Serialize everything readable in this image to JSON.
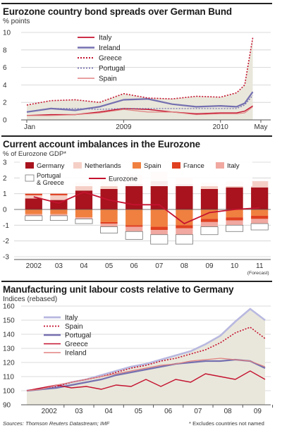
{
  "colors": {
    "red": "#c4122f",
    "dark_red": "#a8131d",
    "pink": "#f2c0c0",
    "light_pink": "#f5cfc6",
    "orange": "#f08040",
    "orange_red": "#e04020",
    "salmon": "#f0a8a0",
    "blue": "#7570b0",
    "light_blue": "#b8b8e0",
    "beige": "#e9e7db",
    "light_red": "#e08080"
  },
  "panel1": {
    "title": "Eurozone country bond spreads over German Bund",
    "unit": "% points",
    "legend": [
      "Italy",
      "Ireland",
      "Greece",
      "Portugal",
      "Spain"
    ],
    "x_ticks": [
      "Jan",
      "2009",
      "2010",
      "May"
    ],
    "y_ticks": [
      "0",
      "2",
      "4",
      "6",
      "8",
      "10"
    ]
  },
  "panel2": {
    "title": "Current account imbalances in the Eurozone",
    "unit": "% of Eurozone GDP*",
    "legend": [
      "Germany",
      "Netherlands",
      "Spain",
      "France",
      "Italy",
      "Portugal & Greece",
      "Eurozone"
    ],
    "x_ticks": [
      "2002",
      "03",
      "04",
      "05",
      "06",
      "07",
      "08",
      "09",
      "10",
      "11"
    ],
    "forecast_note": "(Forecast)",
    "y_ticks": [
      "3",
      "2",
      "1",
      "0",
      "-1",
      "-2",
      "-3"
    ]
  },
  "panel3": {
    "title": "Manufacturing unit labour costs relative to Germany",
    "unit": "Indices (rebased)",
    "legend": [
      "Italy",
      "Spain",
      "Portugal",
      "Greece",
      "Ireland"
    ],
    "x_ticks": [
      "2002",
      "03",
      "04",
      "05",
      "06",
      "07",
      "08",
      "09"
    ],
    "y_ticks": [
      "90",
      "100",
      "110",
      "120",
      "130",
      "140",
      "150",
      "160"
    ]
  },
  "footer": {
    "source": "Sources: Thomson Reuters Datastream; IMF",
    "note": "* Excludes countries not named"
  },
  "chart_data": [
    {
      "type": "line",
      "title": "Eurozone country bond spreads over German Bund",
      "ylabel": "% points",
      "ylim": [
        0,
        10
      ],
      "x_label_positions": [
        "Jan 2008",
        "2009",
        "2010",
        "May 2010"
      ],
      "x": [
        "2008-01",
        "2008-04",
        "2008-07",
        "2008-10",
        "2009-01",
        "2009-04",
        "2009-07",
        "2009-10",
        "2010-01",
        "2010-03",
        "2010-04",
        "2010-05"
      ],
      "series": [
        {
          "name": "Italy",
          "values": [
            0.5,
            0.6,
            0.6,
            0.9,
            1.3,
            1.2,
            0.9,
            0.7,
            0.8,
            0.8,
            1.0,
            1.6
          ]
        },
        {
          "name": "Ireland",
          "values": [
            0.9,
            1.3,
            1.1,
            1.5,
            2.3,
            2.4,
            1.8,
            1.5,
            1.6,
            1.5,
            1.9,
            3.2
          ]
        },
        {
          "name": "Greece",
          "values": [
            1.7,
            2.2,
            2.3,
            2.0,
            3.0,
            2.5,
            2.4,
            2.7,
            2.6,
            3.1,
            4.0,
            9.4
          ]
        },
        {
          "name": "Portugal",
          "values": [
            0.9,
            1.3,
            1.3,
            1.2,
            1.3,
            1.3,
            1.3,
            1.3,
            1.3,
            1.3,
            1.7,
            2.8
          ]
        },
        {
          "name": "Spain",
          "values": [
            0.5,
            0.5,
            0.6,
            0.8,
            1.2,
            0.9,
            0.9,
            0.6,
            0.7,
            0.7,
            0.8,
            1.5
          ]
        }
      ],
      "legend_position": "top-left",
      "grid": true
    },
    {
      "type": "bar",
      "stacked": true,
      "title": "Current account imbalances in the Eurozone",
      "ylabel": "% of Eurozone GDP*",
      "ylim": [
        -3,
        3
      ],
      "categories": [
        "2002",
        "03",
        "04",
        "05",
        "06",
        "07",
        "08",
        "09",
        "10",
        "11"
      ],
      "series": [
        {
          "name": "Germany",
          "values": [
            0.7,
            0.6,
            1.2,
            1.3,
            1.6,
            1.8,
            1.6,
            1.3,
            1.4,
            1.4
          ]
        },
        {
          "name": "Netherlands",
          "values": [
            0.2,
            0.3,
            0.5,
            0.6,
            0.6,
            0.6,
            0.4,
            0.4,
            0.4,
            0.4
          ]
        },
        {
          "name": "Spain",
          "values": [
            -0.3,
            -0.3,
            -0.5,
            -0.8,
            -1.0,
            -1.1,
            -1.0,
            -0.6,
            -0.5,
            -0.4
          ]
        },
        {
          "name": "France",
          "values": [
            0.1,
            0.1,
            0.0,
            -0.1,
            -0.1,
            -0.2,
            -0.2,
            -0.2,
            -0.2,
            -0.2
          ]
        },
        {
          "name": "Italy",
          "values": [
            -0.1,
            -0.1,
            -0.1,
            -0.2,
            -0.3,
            -0.3,
            -0.4,
            -0.3,
            -0.3,
            -0.3
          ]
        },
        {
          "name": "Portugal & Greece",
          "values": [
            -0.3,
            -0.3,
            -0.3,
            -0.4,
            -0.5,
            -0.6,
            -0.6,
            -0.5,
            -0.4,
            -0.4
          ]
        }
      ],
      "line_series": [
        {
          "name": "Eurozone",
          "values": [
            0.8,
            0.4,
            1.1,
            0.6,
            0.3,
            0.3,
            -0.9,
            -0.2,
            0.0,
            0.1
          ]
        }
      ],
      "legend_position": "top",
      "grid": true
    },
    {
      "type": "line",
      "title": "Manufacturing unit labour costs relative to Germany",
      "ylabel": "Indices (rebased)",
      "ylim": [
        90,
        160
      ],
      "x": [
        "2001.5",
        "2002",
        "2002.5",
        "2003",
        "2003.5",
        "2004",
        "2004.5",
        "2005",
        "2005.5",
        "2006",
        "2006.5",
        "2007",
        "2007.5",
        "2008",
        "2008.5",
        "2009",
        "2009.5"
      ],
      "series": [
        {
          "name": "Italy",
          "values": [
            100,
            101,
            103,
            106,
            108,
            111,
            114,
            117,
            119,
            122,
            125,
            128,
            133,
            139,
            149,
            158,
            150
          ]
        },
        {
          "name": "Spain",
          "values": [
            100,
            101,
            103,
            106,
            108,
            110,
            113,
            116,
            118,
            121,
            123,
            126,
            129,
            134,
            141,
            145,
            137
          ]
        },
        {
          "name": "Portugal",
          "values": [
            100,
            101,
            102,
            104,
            106,
            108,
            111,
            113,
            115,
            117,
            119,
            120,
            121,
            121,
            122,
            121,
            116
          ]
        },
        {
          "name": "Greece",
          "values": [
            100,
            102,
            104,
            102,
            103,
            101,
            104,
            103,
            108,
            103,
            108,
            106,
            112,
            110,
            108,
            114,
            108
          ]
        },
        {
          "name": "Ireland",
          "values": [
            100,
            101,
            104,
            106,
            108,
            110,
            112,
            114,
            116,
            118,
            119,
            121,
            122,
            123,
            122,
            121,
            117
          ]
        }
      ],
      "legend_position": "top-left",
      "grid": true
    }
  ]
}
